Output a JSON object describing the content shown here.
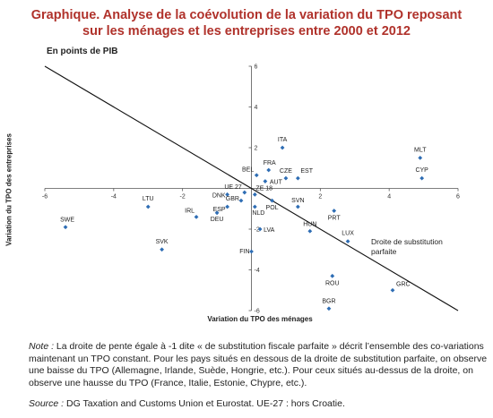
{
  "title": {
    "line1": "Graphique. Analyse de la coévolution de la variation du TPO reposant",
    "line2": "sur les ménages et les entreprises entre 2000 et 2012"
  },
  "units": "En points de PIB",
  "note": {
    "label": "Note :",
    "text": " La droite de pente égale à -1 dite « de substitution fiscale parfaite » décrit l’ensemble des co-variations maintenant un TPO constant. Pour les pays situés en dessous de la droite de substitution parfaite, on observe une baisse du TPO (Allemagne, Irlande, Suède, Hongrie, etc.). Pour ceux situés au-dessus de la droite, on observe une hausse du TPO (France, Italie, Estonie, Chypre, etc.)."
  },
  "source": {
    "label": "Source :",
    "text": "  DG Taxation and Customs Union et  Eurostat. UE-27 : hors Croatie."
  },
  "chart_data": {
    "type": "scatter",
    "xlabel": "Variation du TPO des ménages",
    "ylabel": "Variation du TPO des entreprises",
    "xlim": [
      -6,
      6
    ],
    "ylim": [
      -6,
      6
    ],
    "xticks": [
      -6,
      -4,
      -2,
      2,
      4,
      6
    ],
    "yticks": [
      -6,
      -4,
      -2,
      2,
      4,
      6
    ],
    "grid": false,
    "marker_color": "#2e6db4",
    "line": {
      "slope": -1,
      "intercept": 0,
      "label_line1": "Droite de substitution",
      "label_line2": "parfaite"
    },
    "points": [
      {
        "label": "SWE",
        "x": -5.4,
        "y": -1.9
      },
      {
        "label": "LTU",
        "x": -3.0,
        "y": -0.9
      },
      {
        "label": "SVK",
        "x": -2.6,
        "y": -3.0
      },
      {
        "label": "IRL",
        "x": -1.6,
        "y": -1.4
      },
      {
        "label": "DEU",
        "x": -1.0,
        "y": -1.2
      },
      {
        "label": "ESP",
        "x": -0.7,
        "y": -0.9
      },
      {
        "label": "DNK",
        "x": -0.7,
        "y": -0.3
      },
      {
        "label": "UE 27",
        "x": -0.2,
        "y": -0.2
      },
      {
        "label": "GBR",
        "x": -0.3,
        "y": -0.6
      },
      {
        "label": "ZE 18",
        "x": 0.1,
        "y": -0.3
      },
      {
        "label": "NLD",
        "x": 0.1,
        "y": -0.9
      },
      {
        "label": "BEL",
        "x": 0.15,
        "y": 0.65
      },
      {
        "label": "FRA",
        "x": 0.5,
        "y": 0.9
      },
      {
        "label": "AUT",
        "x": 0.4,
        "y": 0.35
      },
      {
        "label": "POL",
        "x": 0.6,
        "y": -0.6
      },
      {
        "label": "LVA",
        "x": 0.25,
        "y": -2.0
      },
      {
        "label": "FIN",
        "x": 0.0,
        "y": -3.1
      },
      {
        "label": "ITA",
        "x": 0.9,
        "y": 2.0
      },
      {
        "label": "CZE",
        "x": 1.0,
        "y": 0.5
      },
      {
        "label": "EST",
        "x": 1.35,
        "y": 0.5
      },
      {
        "label": "SVN",
        "x": 1.35,
        "y": -0.9
      },
      {
        "label": "HUN",
        "x": 1.7,
        "y": -2.1
      },
      {
        "label": "PRT",
        "x": 2.4,
        "y": -1.1
      },
      {
        "label": "LUX",
        "x": 2.8,
        "y": -2.6
      },
      {
        "label": "ROU",
        "x": 2.35,
        "y": -4.3
      },
      {
        "label": "BGR",
        "x": 2.25,
        "y": -5.9
      },
      {
        "label": "GRC",
        "x": 4.1,
        "y": -5.0
      },
      {
        "label": "MLT",
        "x": 4.9,
        "y": 1.5
      },
      {
        "label": "CYP",
        "x": 4.95,
        "y": 0.5
      }
    ]
  }
}
